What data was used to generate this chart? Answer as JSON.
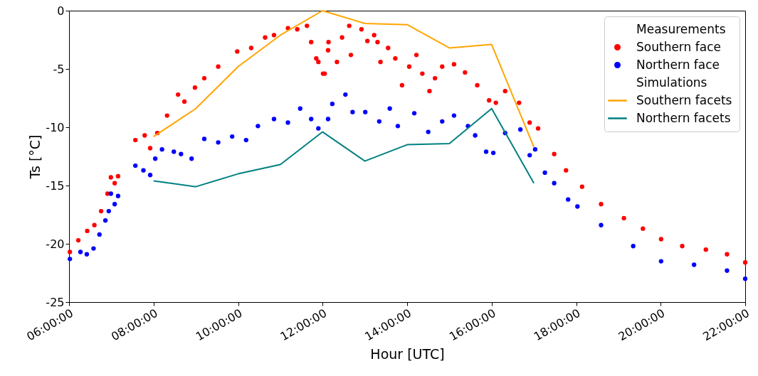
{
  "chart_data": {
    "type": "line",
    "xlabel": "Hour [UTC]",
    "ylabel": "Ts [°C]",
    "xlim": [
      6,
      22
    ],
    "xticks": [
      {
        "value": 6,
        "label": "06:00:00"
      },
      {
        "value": 8,
        "label": "08:00:00"
      },
      {
        "value": 10,
        "label": "10:00:00"
      },
      {
        "value": 12,
        "label": "12:00:00"
      },
      {
        "value": 14,
        "label": "14:00:00"
      },
      {
        "value": 16,
        "label": "16:00:00"
      },
      {
        "value": 18,
        "label": "18:00:00"
      },
      {
        "value": 20,
        "label": "20:00:00"
      },
      {
        "value": 22,
        "label": "22:00:00"
      }
    ],
    "ylim": [
      -25,
      0
    ],
    "yticks": [
      -25,
      -20,
      -15,
      -10,
      -5,
      0
    ],
    "grid": false,
    "legend": "top right",
    "annotations": [
      "Measurements",
      "Simulations"
    ],
    "series": [
      {
        "name": "Southern face",
        "type": "scatter",
        "marker": "circle",
        "color": "#ff0000",
        "x": [
          6.02,
          6.22,
          6.43,
          6.6,
          6.76,
          6.91,
          6.99,
          7.08,
          7.16,
          7.57,
          7.79,
          7.92,
          8.09,
          8.32,
          8.58,
          8.73,
          8.98,
          9.2,
          9.53,
          9.98,
          10.31,
          10.64,
          10.85,
          11.18,
          11.4,
          11.63,
          11.73,
          11.85,
          11.9,
          12.01,
          12.05,
          12.13,
          12.14,
          12.34,
          12.46,
          12.63,
          12.67,
          12.92,
          13.06,
          13.22,
          13.3,
          13.37,
          13.55,
          13.72,
          13.88,
          14.05,
          14.22,
          14.36,
          14.53,
          14.66,
          14.83,
          15.11,
          15.37,
          15.66,
          15.94,
          16.1,
          16.32,
          16.65,
          16.9,
          17.1,
          17.48,
          17.76,
          18.14,
          18.59,
          19.13,
          19.58,
          20.01,
          20.51,
          21.07,
          21.57,
          22.0
        ],
        "values": [
          -20.7,
          -19.7,
          -18.9,
          -18.4,
          -17.2,
          -15.7,
          -14.3,
          -14.8,
          -14.2,
          -11.1,
          -10.7,
          -11.8,
          -10.5,
          -9.0,
          -7.2,
          -7.8,
          -6.6,
          -5.8,
          -4.8,
          -3.5,
          -3.2,
          -2.3,
          -2.1,
          -1.5,
          -1.6,
          -1.3,
          -2.7,
          -4.1,
          -4.4,
          -5.4,
          -5.4,
          -3.4,
          -2.7,
          -4.4,
          -2.3,
          -1.3,
          -3.8,
          -1.6,
          -2.6,
          -2.1,
          -2.7,
          -4.4,
          -3.2,
          -4.1,
          -6.4,
          -4.8,
          -3.8,
          -5.4,
          -6.9,
          -5.8,
          -4.8,
          -4.6,
          -5.3,
          -6.4,
          -7.7,
          -7.9,
          -6.9,
          -7.9,
          -9.6,
          -10.1,
          -12.3,
          -13.7,
          -15.1,
          -16.6,
          -17.8,
          -18.7,
          -19.6,
          -20.2,
          -20.5,
          -20.9,
          -21.6
        ]
      },
      {
        "name": "Northern face",
        "type": "scatter",
        "marker": "circle",
        "color": "#0000ff",
        "x": [
          6.02,
          6.27,
          6.42,
          6.58,
          6.72,
          6.86,
          6.94,
          6.99,
          7.08,
          7.16,
          7.57,
          7.76,
          7.92,
          8.04,
          8.2,
          8.48,
          8.65,
          8.9,
          9.2,
          9.53,
          9.86,
          10.19,
          10.47,
          10.85,
          11.18,
          11.47,
          11.73,
          11.9,
          12.13,
          12.23,
          12.54,
          12.71,
          13.01,
          13.34,
          13.59,
          13.78,
          14.17,
          14.5,
          14.83,
          15.11,
          15.44,
          15.61,
          15.87,
          16.04,
          16.32,
          16.68,
          16.9,
          17.03,
          17.26,
          17.48,
          17.81,
          18.03,
          18.59,
          19.35,
          20.01,
          20.79,
          21.57,
          22.0
        ],
        "values": [
          -21.3,
          -20.7,
          -20.9,
          -20.4,
          -19.2,
          -18.0,
          -17.2,
          -15.7,
          -16.6,
          -15.9,
          -13.3,
          -13.7,
          -14.1,
          -12.7,
          -11.9,
          -12.1,
          -12.3,
          -12.7,
          -11.0,
          -11.3,
          -10.8,
          -11.1,
          -9.9,
          -9.3,
          -9.6,
          -8.4,
          -9.3,
          -10.1,
          -9.3,
          -8.0,
          -7.2,
          -8.7,
          -8.7,
          -9.5,
          -8.4,
          -9.9,
          -8.8,
          -10.4,
          -9.5,
          -9.0,
          -9.9,
          -10.7,
          -12.1,
          -12.2,
          -10.5,
          -10.2,
          -12.4,
          -11.9,
          -13.9,
          -14.8,
          -16.2,
          -16.8,
          -18.4,
          -20.2,
          -21.5,
          -21.8,
          -22.3,
          -23.0
        ]
      },
      {
        "name": "Southern facets",
        "type": "line",
        "color": "#ffa500",
        "x": [
          8,
          9,
          10,
          11,
          12,
          13,
          14,
          15,
          16,
          17
        ],
        "values": [
          -10.8,
          -8.4,
          -4.8,
          -2.1,
          0,
          -1.1,
          -1.2,
          -3.2,
          -2.9,
          -11.7
        ]
      },
      {
        "name": "Northern facets",
        "type": "line",
        "color": "#008080",
        "x": [
          8,
          9,
          10,
          11,
          12,
          13,
          14,
          15,
          16,
          17
        ],
        "values": [
          -14.6,
          -15.1,
          -14.0,
          -13.2,
          -10.4,
          -12.9,
          -11.5,
          -11.4,
          -8.4,
          -14.8
        ]
      }
    ]
  }
}
